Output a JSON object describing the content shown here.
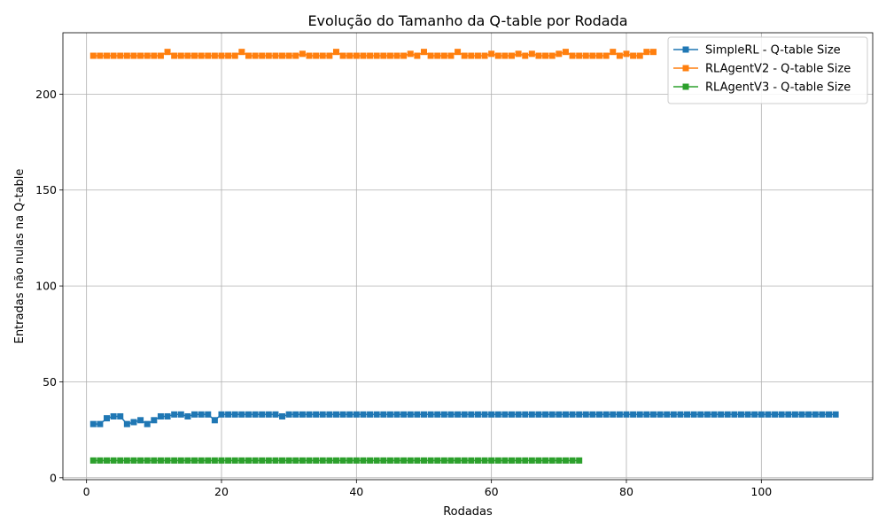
{
  "chart_data": {
    "type": "line",
    "title": "Evolução do Tamanho da Q-table por Rodada",
    "xlabel": "Rodadas",
    "ylabel": "Entradas não nulas na Q-table",
    "xlim": [
      -3.5,
      116.5
    ],
    "ylim": [
      -1,
      232
    ],
    "xticks": [
      0,
      20,
      40,
      60,
      80,
      100
    ],
    "yticks": [
      0,
      50,
      100,
      150,
      200
    ],
    "grid": true,
    "legend_position": "top-right",
    "marker": "square",
    "series": [
      {
        "name": "SimpleRL - Q-table Size",
        "color": "#1f77b4",
        "values": [
          28,
          28,
          31,
          32,
          32,
          28,
          29,
          30,
          28,
          30,
          32,
          32,
          33,
          33,
          32,
          33,
          33,
          33,
          30,
          33,
          33,
          33,
          33,
          33,
          33,
          33,
          33,
          33,
          32,
          33,
          33,
          33,
          33,
          33,
          33,
          33,
          33,
          33,
          33,
          33,
          33,
          33,
          33,
          33,
          33,
          33,
          33,
          33,
          33,
          33,
          33,
          33,
          33,
          33,
          33,
          33,
          33,
          33,
          33,
          33,
          33,
          33,
          33,
          33,
          33,
          33,
          33,
          33,
          33,
          33,
          33,
          33,
          33,
          33,
          33,
          33,
          33,
          33,
          33,
          33,
          33,
          33,
          33,
          33,
          33,
          33,
          33,
          33,
          33,
          33,
          33,
          33,
          33,
          33,
          33,
          33,
          33,
          33,
          33,
          33,
          33,
          33,
          33,
          33,
          33,
          33,
          33,
          33,
          33,
          33,
          33
        ]
      },
      {
        "name": "RLAgentV2 - Q-table Size",
        "color": "#ff7f0e",
        "values": [
          220,
          220,
          220,
          220,
          220,
          220,
          220,
          220,
          220,
          220,
          220,
          222,
          220,
          220,
          220,
          220,
          220,
          220,
          220,
          220,
          220,
          220,
          222,
          220,
          220,
          220,
          220,
          220,
          220,
          220,
          220,
          221,
          220,
          220,
          220,
          220,
          222,
          220,
          220,
          220,
          220,
          220,
          220,
          220,
          220,
          220,
          220,
          221,
          220,
          222,
          220,
          220,
          220,
          220,
          222,
          220,
          220,
          220,
          220,
          221,
          220,
          220,
          220,
          221,
          220,
          221,
          220,
          220,
          220,
          221,
          222,
          220,
          220,
          220,
          220,
          220,
          220,
          222,
          220,
          221,
          220,
          220,
          222,
          222
        ]
      },
      {
        "name": "RLAgentV3 - Q-table Size",
        "color": "#2ca02c",
        "values": [
          9,
          9,
          9,
          9,
          9,
          9,
          9,
          9,
          9,
          9,
          9,
          9,
          9,
          9,
          9,
          9,
          9,
          9,
          9,
          9,
          9,
          9,
          9,
          9,
          9,
          9,
          9,
          9,
          9,
          9,
          9,
          9,
          9,
          9,
          9,
          9,
          9,
          9,
          9,
          9,
          9,
          9,
          9,
          9,
          9,
          9,
          9,
          9,
          9,
          9,
          9,
          9,
          9,
          9,
          9,
          9,
          9,
          9,
          9,
          9,
          9,
          9,
          9,
          9,
          9,
          9,
          9,
          9,
          9,
          9,
          9,
          9,
          9
        ]
      }
    ]
  }
}
